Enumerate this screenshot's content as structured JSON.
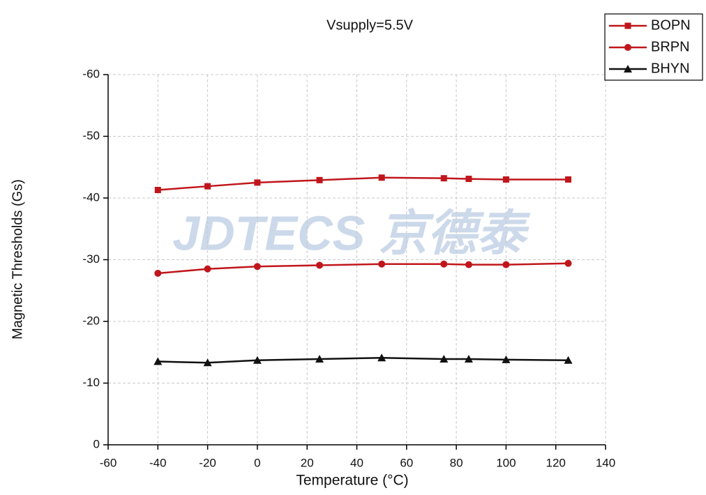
{
  "chart_data": {
    "type": "line",
    "title": "Vsupply=5.5V",
    "x_label": "Temperature (°C)",
    "y_label": "Magnetic Thresholds (Gs)",
    "watermark": "JDTECS 京德泰",
    "x": [
      -40,
      -20,
      0,
      25,
      50,
      75,
      85,
      100,
      125
    ],
    "series": [
      {
        "name": "BOPN",
        "color": "#c0161b",
        "marker": "square",
        "values": [
          -41.3,
          -41.9,
          -42.5,
          -42.9,
          -43.3,
          -43.2,
          -43.1,
          -43.0,
          -43.0
        ]
      },
      {
        "name": "BRPN",
        "color": "#c0161b",
        "marker": "circle",
        "values": [
          -27.8,
          -28.5,
          -28.9,
          -29.1,
          -29.3,
          -29.3,
          -29.2,
          -29.2,
          -29.4
        ]
      },
      {
        "name": "BHYN",
        "color": "#111111",
        "marker": "triangle",
        "values": [
          -13.5,
          -13.3,
          -13.7,
          -13.9,
          -14.1,
          -13.9,
          -13.9,
          -13.8,
          -13.7
        ]
      }
    ],
    "xlim": [
      -60,
      140
    ],
    "xticks": [
      -60,
      -40,
      -20,
      0,
      20,
      40,
      60,
      80,
      100,
      120,
      140
    ],
    "ylim": [
      0,
      -60
    ],
    "yticks": [
      0,
      -10,
      -20,
      -30,
      -40,
      -50,
      -60
    ],
    "grid": true,
    "legend": "upper right"
  }
}
